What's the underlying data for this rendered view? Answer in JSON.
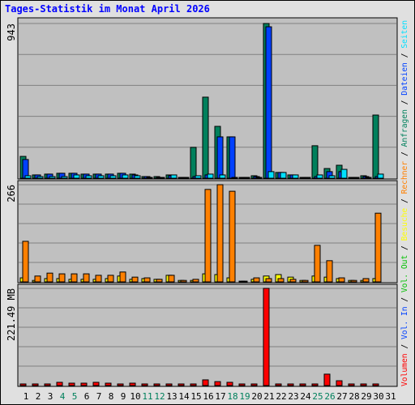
{
  "title": "Tages-Statistik im Monat April 2026",
  "legend_separator": " / ",
  "chart_data": [
    {
      "type": "bar",
      "ylim": [
        0,
        943
      ],
      "yticks": [
        943
      ],
      "series": [
        {
          "name": "Anfragen",
          "color": "#00805c",
          "values": [
            133,
            20,
            25,
            30,
            30,
            25,
            25,
            25,
            30,
            25,
            10,
            10,
            20,
            5,
            188,
            494,
            316,
            252,
            5,
            15,
            943,
            35,
            20,
            5,
            198,
            59,
            79,
            5,
            15,
            385,
            null
          ]
        },
        {
          "name": "Dateien",
          "color": "#0040ff",
          "values": [
            114,
            20,
            25,
            30,
            30,
            25,
            25,
            25,
            30,
            20,
            10,
            5,
            15,
            5,
            10,
            20,
            252,
            252,
            5,
            10,
            923,
            35,
            20,
            5,
            10,
            40,
            40,
            5,
            10,
            10,
            null
          ]
        },
        {
          "name": "Seiten",
          "color": "#00e0ff",
          "values": [
            15,
            10,
            10,
            10,
            20,
            15,
            15,
            15,
            20,
            15,
            5,
            5,
            20,
            5,
            15,
            25,
            20,
            5,
            5,
            5,
            40,
            35,
            20,
            5,
            20,
            15,
            54,
            5,
            5,
            25,
            null
          ]
        }
      ]
    },
    {
      "type": "bar",
      "ylim": [
        0,
        266
      ],
      "yticks": [
        266
      ],
      "series": [
        {
          "name": "Besuche",
          "color": "#ffff00",
          "values": [
            11,
            4,
            9,
            9,
            7,
            7,
            7,
            9,
            16,
            7,
            9,
            7,
            18,
            4,
            4,
            22,
            20,
            11,
            2,
            7,
            16,
            20,
            13,
            4,
            16,
            13,
            9,
            4,
            4,
            9,
            null
          ]
        },
        {
          "name": "Rechner",
          "color": "#ff8000",
          "values": [
            111,
            16,
            24,
            22,
            22,
            22,
            18,
            18,
            27,
            13,
            11,
            7,
            18,
            4,
            7,
            253,
            266,
            248,
            2,
            11,
            9,
            9,
            7,
            4,
            100,
            58,
            11,
            4,
            9,
            188,
            null
          ]
        }
      ]
    },
    {
      "type": "bar",
      "ylim": [
        0,
        221.49
      ],
      "yticks": [
        {
          "value": 221.49,
          "label": "221.49 MB"
        }
      ],
      "categories": [
        "1",
        "2",
        "3",
        "4",
        "5",
        "6",
        "7",
        "8",
        "9",
        "10",
        "11",
        "12",
        "13",
        "14",
        "15",
        "16",
        "17",
        "18",
        "19",
        "20",
        "21",
        "22",
        "23",
        "24",
        "25",
        "26",
        "27",
        "28",
        "29",
        "30",
        "31"
      ],
      "category_colors": [
        "#000000",
        "#000000",
        "#000000",
        "#00805c",
        "#00805c",
        "#000000",
        "#000000",
        "#000000",
        "#000000",
        "#000000",
        "#00805c",
        "#00805c",
        "#000000",
        "#000000",
        "#000000",
        "#000000",
        "#000000",
        "#00805c",
        "#00805c",
        "#000000",
        "#000000",
        "#000000",
        "#000000",
        "#000000",
        "#00805c",
        "#00805c",
        "#000000",
        "#000000",
        "#000000",
        "#000000",
        "#000000"
      ],
      "series": [
        {
          "name": "Volumen",
          "color": "#ff0000",
          "values": [
            3.7,
            3.7,
            3.7,
            7.4,
            5.5,
            5.5,
            7.4,
            5.5,
            3.7,
            5.5,
            3.7,
            3.7,
            3.7,
            3.7,
            3.7,
            13,
            9,
            7.4,
            3.7,
            3.7,
            221.49,
            3.7,
            3.7,
            3.7,
            3.7,
            26,
            11,
            3.7,
            3.7,
            3.7,
            null
          ]
        },
        {
          "name": "Vol. In",
          "color": "#0040ff",
          "values": [
            null,
            null,
            null,
            null,
            null,
            null,
            null,
            null,
            null,
            null,
            null,
            null,
            null,
            null,
            null,
            null,
            null,
            null,
            null,
            null,
            null,
            null,
            null,
            null,
            null,
            null,
            null,
            null,
            null,
            null,
            null
          ]
        },
        {
          "name": "Vol. Out",
          "color": "#00c000",
          "values": [
            null,
            null,
            null,
            null,
            null,
            null,
            null,
            null,
            null,
            null,
            null,
            null,
            null,
            null,
            null,
            null,
            null,
            null,
            null,
            null,
            null,
            null,
            null,
            null,
            null,
            null,
            null,
            null,
            null,
            null,
            null
          ]
        }
      ]
    }
  ]
}
